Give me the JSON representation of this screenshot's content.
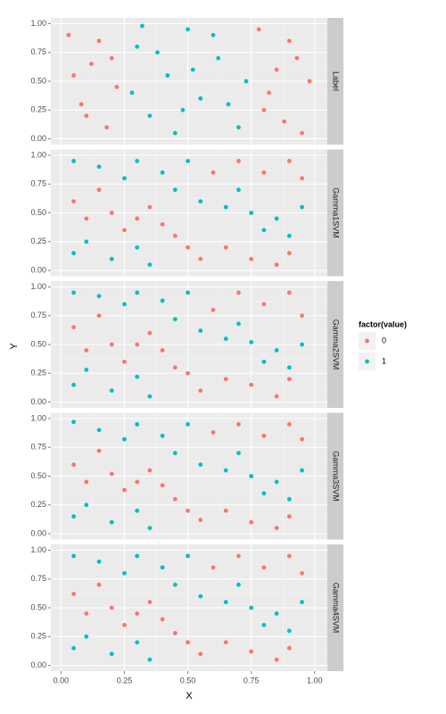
{
  "chart_data": {
    "type": "scatter",
    "xlabel": "X",
    "ylabel": "Y",
    "legend_title": "factor(value)",
    "legend_position": "right",
    "grid": true,
    "xlim": [
      -0.04,
      1.05
    ],
    "ylim": [
      -0.05,
      1.05
    ],
    "xticks": [
      {
        "value": 0,
        "label": "0.00"
      },
      {
        "value": 0.25,
        "label": "0.25"
      },
      {
        "value": 0.5,
        "label": "0.50"
      },
      {
        "value": 0.75,
        "label": "0.75"
      },
      {
        "value": 1,
        "label": "1.00"
      }
    ],
    "yticks": [
      {
        "value": 0,
        "label": "0.00"
      },
      {
        "value": 0.25,
        "label": "0.25"
      },
      {
        "value": 0.5,
        "label": "0.50"
      },
      {
        "value": 0.75,
        "label": "0.75"
      },
      {
        "value": 1,
        "label": "1.00"
      }
    ],
    "panels": [
      {
        "label": "Label",
        "series": [
          {
            "name": "0",
            "color": "#f8766d",
            "x": [
              0.03,
              0.08,
              0.12,
              0.18,
              0.22,
              0.05,
              0.15,
              0.2,
              0.1,
              0.78,
              0.82,
              0.88,
              0.93,
              0.98,
              0.85,
              0.8,
              0.95,
              0.9
            ],
            "y": [
              0.9,
              0.3,
              0.65,
              0.1,
              0.45,
              0.55,
              0.85,
              0.7,
              0.2,
              0.95,
              0.4,
              0.15,
              0.7,
              0.5,
              0.6,
              0.25,
              0.05,
              0.85
            ]
          },
          {
            "name": "1",
            "color": "#00bfc4",
            "x": [
              0.3,
              0.35,
              0.42,
              0.5,
              0.55,
              0.62,
              0.7,
              0.73,
              0.28,
              0.45,
              0.6,
              0.38,
              0.66,
              0.52,
              0.32,
              0.48
            ],
            "y": [
              0.8,
              0.2,
              0.55,
              0.95,
              0.35,
              0.7,
              0.1,
              0.5,
              0.4,
              0.05,
              0.9,
              0.75,
              0.3,
              0.6,
              0.98,
              0.25
            ]
          }
        ]
      },
      {
        "label": "Gamma1SVM",
        "series": [
          {
            "name": "0",
            "color": "#f8766d",
            "x": [
              0.05,
              0.1,
              0.15,
              0.2,
              0.3,
              0.35,
              0.45,
              0.5,
              0.55,
              0.65,
              0.75,
              0.85,
              0.9,
              0.6,
              0.7,
              0.8,
              0.9,
              0.95,
              0.25,
              0.4
            ],
            "y": [
              0.6,
              0.45,
              0.7,
              0.5,
              0.45,
              0.55,
              0.3,
              0.2,
              0.1,
              0.2,
              0.1,
              0.05,
              0.15,
              0.85,
              0.95,
              0.85,
              0.95,
              0.8,
              0.35,
              0.4
            ]
          },
          {
            "name": "1",
            "color": "#00bfc4",
            "x": [
              0.05,
              0.15,
              0.3,
              0.4,
              0.45,
              0.5,
              0.55,
              0.65,
              0.75,
              0.85,
              0.95,
              0.9,
              0.05,
              0.1,
              0.2,
              0.3,
              0.35,
              0.7,
              0.25,
              0.8
            ],
            "y": [
              0.95,
              0.9,
              0.95,
              0.85,
              0.7,
              0.95,
              0.6,
              0.55,
              0.5,
              0.45,
              0.55,
              0.3,
              0.15,
              0.25,
              0.1,
              0.2,
              0.05,
              0.7,
              0.8,
              0.35
            ]
          }
        ]
      },
      {
        "label": "Gamma2SVM",
        "series": [
          {
            "name": "0",
            "color": "#f8766d",
            "x": [
              0.05,
              0.1,
              0.15,
              0.2,
              0.3,
              0.35,
              0.45,
              0.5,
              0.55,
              0.65,
              0.75,
              0.85,
              0.9,
              0.6,
              0.7,
              0.8,
              0.9,
              0.95,
              0.25,
              0.4
            ],
            "y": [
              0.65,
              0.45,
              0.75,
              0.5,
              0.5,
              0.6,
              0.3,
              0.25,
              0.1,
              0.2,
              0.15,
              0.05,
              0.2,
              0.8,
              0.95,
              0.85,
              0.95,
              0.75,
              0.35,
              0.45
            ]
          },
          {
            "name": "1",
            "color": "#00bfc4",
            "x": [
              0.05,
              0.15,
              0.3,
              0.4,
              0.45,
              0.5,
              0.55,
              0.65,
              0.75,
              0.85,
              0.95,
              0.9,
              0.05,
              0.1,
              0.2,
              0.3,
              0.35,
              0.7,
              0.25,
              0.8
            ],
            "y": [
              0.95,
              0.92,
              0.95,
              0.88,
              0.72,
              0.95,
              0.62,
              0.55,
              0.52,
              0.45,
              0.5,
              0.3,
              0.15,
              0.28,
              0.1,
              0.22,
              0.05,
              0.68,
              0.85,
              0.35
            ]
          }
        ]
      },
      {
        "label": "Gamma3SVM",
        "series": [
          {
            "name": "0",
            "color": "#f8766d",
            "x": [
              0.05,
              0.1,
              0.15,
              0.2,
              0.3,
              0.35,
              0.45,
              0.5,
              0.55,
              0.65,
              0.75,
              0.85,
              0.9,
              0.6,
              0.7,
              0.8,
              0.9,
              0.95,
              0.25,
              0.4
            ],
            "y": [
              0.6,
              0.45,
              0.72,
              0.52,
              0.45,
              0.55,
              0.3,
              0.2,
              0.12,
              0.2,
              0.1,
              0.05,
              0.15,
              0.88,
              0.95,
              0.85,
              0.95,
              0.82,
              0.38,
              0.42
            ]
          },
          {
            "name": "1",
            "color": "#00bfc4",
            "x": [
              0.05,
              0.15,
              0.3,
              0.4,
              0.45,
              0.5,
              0.55,
              0.65,
              0.75,
              0.85,
              0.95,
              0.9,
              0.05,
              0.1,
              0.2,
              0.3,
              0.35,
              0.7,
              0.25,
              0.8
            ],
            "y": [
              0.97,
              0.9,
              0.95,
              0.85,
              0.7,
              0.95,
              0.6,
              0.55,
              0.5,
              0.45,
              0.55,
              0.3,
              0.15,
              0.25,
              0.1,
              0.2,
              0.05,
              0.7,
              0.82,
              0.35
            ]
          }
        ]
      },
      {
        "label": "Gamma4SVM",
        "series": [
          {
            "name": "0",
            "color": "#f8766d",
            "x": [
              0.05,
              0.1,
              0.15,
              0.2,
              0.3,
              0.35,
              0.45,
              0.5,
              0.55,
              0.65,
              0.75,
              0.85,
              0.9,
              0.6,
              0.7,
              0.8,
              0.9,
              0.95,
              0.25,
              0.4
            ],
            "y": [
              0.62,
              0.45,
              0.7,
              0.5,
              0.45,
              0.55,
              0.28,
              0.2,
              0.1,
              0.2,
              0.12,
              0.05,
              0.15,
              0.85,
              0.95,
              0.85,
              0.95,
              0.8,
              0.35,
              0.4
            ]
          },
          {
            "name": "1",
            "color": "#00bfc4",
            "x": [
              0.05,
              0.15,
              0.3,
              0.4,
              0.45,
              0.5,
              0.55,
              0.65,
              0.75,
              0.85,
              0.95,
              0.9,
              0.05,
              0.1,
              0.2,
              0.3,
              0.35,
              0.7,
              0.25,
              0.8
            ],
            "y": [
              0.95,
              0.9,
              0.95,
              0.85,
              0.7,
              0.95,
              0.6,
              0.55,
              0.5,
              0.45,
              0.55,
              0.3,
              0.15,
              0.25,
              0.1,
              0.2,
              0.05,
              0.7,
              0.8,
              0.35
            ]
          }
        ]
      }
    ]
  }
}
